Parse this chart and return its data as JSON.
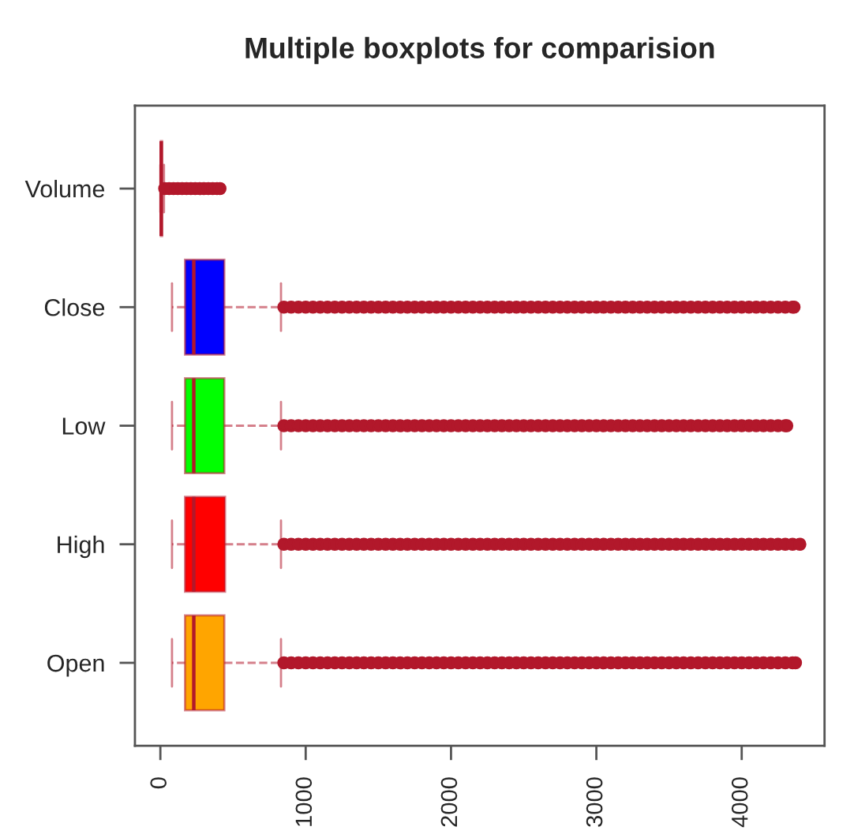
{
  "chart_data": {
    "type": "box",
    "title": "Multiple boxplots for comparision",
    "orientation": "horizontal",
    "marker": "circle",
    "line_style": "dashed",
    "categories": [
      "Volume",
      "Close",
      "Low",
      "High",
      "Open"
    ],
    "xlim": [
      -175,
      4570
    ],
    "xticks": [
      0,
      1000,
      2000,
      3000,
      4000
    ],
    "series": [
      {
        "color": "#b2182b",
        "colors": [
          null,
          "#0000ff",
          "#00ff00",
          "#ff0000",
          "#ffa500"
        ],
        "boxes": [
          {
            "low": 0,
            "q1": 3,
            "median": 6,
            "q3": 12,
            "high": 25,
            "outliers": [
              30,
              60,
              90,
              120,
              150,
              180,
              210,
              240,
              270,
              300,
              330,
              360,
              390,
              410
            ]
          },
          {
            "low": 80,
            "q1": 170,
            "median": 230,
            "q3": 440,
            "high": 830,
            "outliers": [
              850,
              900,
              950,
              1000,
              1050,
              1100,
              1150,
              1200,
              1250,
              1300,
              1350,
              1400,
              1450,
              1500,
              1550,
              1600,
              1650,
              1700,
              1750,
              1800,
              1850,
              1900,
              1950,
              2000,
              2050,
              2100,
              2150,
              2200,
              2250,
              2300,
              2350,
              2400,
              2450,
              2500,
              2550,
              2600,
              2650,
              2700,
              2750,
              2800,
              2850,
              2900,
              2950,
              3000,
              3050,
              3100,
              3150,
              3200,
              3250,
              3300,
              3350,
              3400,
              3450,
              3500,
              3550,
              3600,
              3650,
              3700,
              3750,
              3800,
              3850,
              3900,
              3950,
              4000,
              4050,
              4100,
              4150,
              4200,
              4250,
              4300,
              4350,
              4360
            ]
          },
          {
            "low": 80,
            "q1": 170,
            "median": 230,
            "q3": 440,
            "high": 830,
            "outliers": [
              850,
              900,
              950,
              1000,
              1050,
              1100,
              1150,
              1200,
              1250,
              1300,
              1350,
              1400,
              1450,
              1500,
              1550,
              1600,
              1650,
              1700,
              1750,
              1800,
              1850,
              1900,
              1950,
              2000,
              2050,
              2100,
              2150,
              2200,
              2250,
              2300,
              2350,
              2400,
              2450,
              2500,
              2550,
              2600,
              2650,
              2700,
              2750,
              2800,
              2850,
              2900,
              2950,
              3000,
              3050,
              3100,
              3150,
              3200,
              3250,
              3300,
              3350,
              3400,
              3450,
              3500,
              3550,
              3600,
              3650,
              3700,
              3750,
              3800,
              3850,
              3900,
              3950,
              4000,
              4050,
              4100,
              4150,
              4200,
              4250,
              4300,
              4310
            ]
          },
          {
            "low": 80,
            "q1": 170,
            "median": 230,
            "q3": 445,
            "high": 830,
            "outliers": [
              850,
              900,
              950,
              1000,
              1050,
              1100,
              1150,
              1200,
              1250,
              1300,
              1350,
              1400,
              1450,
              1500,
              1550,
              1600,
              1650,
              1700,
              1750,
              1800,
              1850,
              1900,
              1950,
              2000,
              2050,
              2100,
              2150,
              2200,
              2250,
              2300,
              2350,
              2400,
              2450,
              2500,
              2550,
              2600,
              2650,
              2700,
              2750,
              2800,
              2850,
              2900,
              2950,
              3000,
              3050,
              3100,
              3150,
              3200,
              3250,
              3300,
              3350,
              3400,
              3450,
              3500,
              3550,
              3600,
              3650,
              3700,
              3750,
              3800,
              3850,
              3900,
              3950,
              4000,
              4050,
              4100,
              4150,
              4200,
              4250,
              4300,
              4350,
              4400
            ]
          },
          {
            "low": 80,
            "q1": 170,
            "median": 230,
            "q3": 440,
            "high": 830,
            "outliers": [
              850,
              900,
              950,
              1000,
              1050,
              1100,
              1150,
              1200,
              1250,
              1300,
              1350,
              1400,
              1450,
              1500,
              1550,
              1600,
              1650,
              1700,
              1750,
              1800,
              1850,
              1900,
              1950,
              2000,
              2050,
              2100,
              2150,
              2200,
              2250,
              2300,
              2350,
              2400,
              2450,
              2500,
              2550,
              2600,
              2650,
              2700,
              2750,
              2800,
              2850,
              2900,
              2950,
              3000,
              3050,
              3100,
              3150,
              3200,
              3250,
              3300,
              3350,
              3400,
              3450,
              3500,
              3550,
              3600,
              3650,
              3700,
              3750,
              3800,
              3850,
              3900,
              3950,
              4000,
              4050,
              4100,
              4150,
              4200,
              4250,
              4300,
              4350,
              4370
            ]
          }
        ]
      }
    ]
  }
}
